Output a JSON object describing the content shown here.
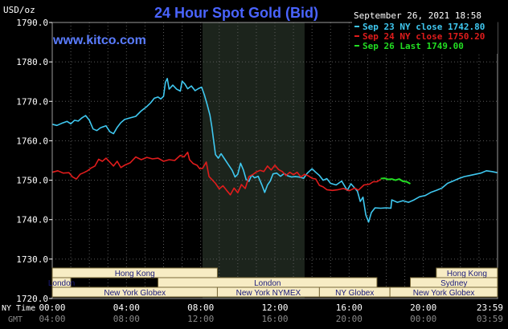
{
  "chart_data": {
    "type": "line",
    "title": "24 Hour Spot Gold (Bid)",
    "watermark": "www.kitco.com",
    "ylabel": "USD/oz",
    "timestamp": "September 26, 2021 18:58",
    "ylim": [
      1720,
      1790
    ],
    "y_ticks": [
      "1790.0",
      "1780.0",
      "1770.0",
      "1760.0",
      "1750.0",
      "1740.0",
      "1730.0",
      "1720.0"
    ],
    "x_ticks_ny": [
      "00:00",
      "04:00",
      "08:00",
      "12:00",
      "16:00",
      "20:00",
      "23:59"
    ],
    "x_ticks_gmt": [
      "04:00",
      "08:00",
      "12:00",
      "16:00",
      "20:00",
      "00:00",
      "03:59"
    ],
    "row_label_ny": "NY Time",
    "row_label_gmt": "GMT",
    "x_range_hours": [
      0,
      24
    ],
    "shaded_region_hours": [
      8.1,
      13.6
    ],
    "grid": true,
    "legend_position": "top-right",
    "legend": [
      {
        "text": "Sep 23 NY close 1742.80",
        "color": "#3fc8f0"
      },
      {
        "text": "Sep 24 NY close 1750.20",
        "color": "#e01c1c"
      },
      {
        "text": "Sep 26 Last 1749.00",
        "color": "#22dd22"
      }
    ],
    "series": [
      {
        "color": "#3fc8f0",
        "points": [
          [
            0,
            1764.2
          ],
          [
            0.25,
            1763.9
          ],
          [
            0.5,
            1764.4
          ],
          [
            0.8,
            1764.9
          ],
          [
            1.0,
            1764.3
          ],
          [
            1.2,
            1765.2
          ],
          [
            1.4,
            1765.0
          ],
          [
            1.6,
            1765.8
          ],
          [
            1.8,
            1766.4
          ],
          [
            2.0,
            1765.2
          ],
          [
            2.2,
            1763.0
          ],
          [
            2.4,
            1762.6
          ],
          [
            2.6,
            1763.3
          ],
          [
            2.9,
            1763.8
          ],
          [
            3.1,
            1762.3
          ],
          [
            3.3,
            1761.8
          ],
          [
            3.5,
            1763.4
          ],
          [
            3.7,
            1764.6
          ],
          [
            3.9,
            1765.4
          ],
          [
            4.2,
            1765.8
          ],
          [
            4.5,
            1766.2
          ],
          [
            4.8,
            1767.6
          ],
          [
            5.1,
            1768.7
          ],
          [
            5.3,
            1769.6
          ],
          [
            5.5,
            1770.8
          ],
          [
            5.7,
            1771.1
          ],
          [
            5.85,
            1770.6
          ],
          [
            6.0,
            1771.3
          ],
          [
            6.1,
            1774.8
          ],
          [
            6.2,
            1775.8
          ],
          [
            6.3,
            1773.1
          ],
          [
            6.5,
            1774.1
          ],
          [
            6.7,
            1773.1
          ],
          [
            6.9,
            1772.6
          ],
          [
            7.0,
            1775.1
          ],
          [
            7.15,
            1774.4
          ],
          [
            7.3,
            1773.2
          ],
          [
            7.5,
            1773.9
          ],
          [
            7.7,
            1772.7
          ],
          [
            7.9,
            1773.3
          ],
          [
            8.05,
            1773.6
          ],
          [
            8.2,
            1771.6
          ],
          [
            8.35,
            1769.2
          ],
          [
            8.5,
            1766.5
          ],
          [
            8.6,
            1763.6
          ],
          [
            8.7,
            1760.0
          ],
          [
            8.8,
            1756.5
          ],
          [
            8.95,
            1755.6
          ],
          [
            9.1,
            1756.7
          ],
          [
            9.3,
            1755.3
          ],
          [
            9.5,
            1753.9
          ],
          [
            9.7,
            1752.5
          ],
          [
            9.85,
            1750.8
          ],
          [
            10.0,
            1751.5
          ],
          [
            10.15,
            1754.3
          ],
          [
            10.3,
            1752.6
          ],
          [
            10.45,
            1750.2
          ],
          [
            10.6,
            1749.7
          ],
          [
            10.75,
            1751.3
          ],
          [
            10.9,
            1750.6
          ],
          [
            11.1,
            1751.0
          ],
          [
            11.3,
            1748.8
          ],
          [
            11.45,
            1746.9
          ],
          [
            11.6,
            1748.8
          ],
          [
            11.75,
            1749.8
          ],
          [
            11.9,
            1751.6
          ],
          [
            12.1,
            1751.8
          ],
          [
            12.3,
            1751.0
          ],
          [
            12.5,
            1751.7
          ],
          [
            12.7,
            1751.1
          ],
          [
            12.9,
            1750.8
          ],
          [
            13.1,
            1750.9
          ],
          [
            13.3,
            1750.8
          ],
          [
            13.55,
            1750.5
          ],
          [
            13.75,
            1751.8
          ],
          [
            14.0,
            1752.9
          ],
          [
            14.2,
            1752.0
          ],
          [
            14.4,
            1751.2
          ],
          [
            14.6,
            1750.0
          ],
          [
            14.8,
            1750.4
          ],
          [
            15.0,
            1749.2
          ],
          [
            15.3,
            1748.8
          ],
          [
            15.6,
            1749.8
          ],
          [
            15.9,
            1747.4
          ],
          [
            16.1,
            1749.1
          ],
          [
            16.3,
            1748.0
          ],
          [
            16.45,
            1747.2
          ],
          [
            16.6,
            1744.6
          ],
          [
            16.75,
            1745.7
          ],
          [
            16.9,
            1741.2
          ],
          [
            17.05,
            1739.4
          ],
          [
            17.2,
            1741.8
          ],
          [
            17.4,
            1743.0
          ],
          [
            17.7,
            1742.9
          ],
          [
            18.0,
            1743.0
          ],
          [
            18.25,
            1742.9
          ],
          [
            18.3,
            1745.0
          ],
          [
            18.6,
            1744.4
          ],
          [
            18.9,
            1744.8
          ],
          [
            19.2,
            1744.4
          ],
          [
            19.5,
            1745.0
          ],
          [
            19.8,
            1745.8
          ],
          [
            20.1,
            1746.1
          ],
          [
            20.4,
            1746.9
          ],
          [
            20.7,
            1747.4
          ],
          [
            21.0,
            1748.0
          ],
          [
            21.3,
            1749.2
          ],
          [
            21.6,
            1749.8
          ],
          [
            21.9,
            1750.4
          ],
          [
            22.2,
            1750.9
          ],
          [
            22.5,
            1751.2
          ],
          [
            22.8,
            1751.5
          ],
          [
            23.1,
            1751.8
          ],
          [
            23.4,
            1752.4
          ],
          [
            23.7,
            1752.2
          ],
          [
            23.99,
            1751.9
          ]
        ]
      },
      {
        "color": "#e01c1c",
        "points": [
          [
            0,
            1752.0
          ],
          [
            0.3,
            1752.4
          ],
          [
            0.6,
            1751.8
          ],
          [
            0.9,
            1751.9
          ],
          [
            1.1,
            1750.8
          ],
          [
            1.3,
            1750.3
          ],
          [
            1.5,
            1751.5
          ],
          [
            1.7,
            1751.9
          ],
          [
            1.9,
            1752.4
          ],
          [
            2.1,
            1753.1
          ],
          [
            2.3,
            1753.6
          ],
          [
            2.5,
            1755.3
          ],
          [
            2.7,
            1754.8
          ],
          [
            2.9,
            1755.6
          ],
          [
            3.1,
            1754.6
          ],
          [
            3.3,
            1753.6
          ],
          [
            3.5,
            1754.8
          ],
          [
            3.7,
            1753.2
          ],
          [
            3.9,
            1753.8
          ],
          [
            4.2,
            1754.4
          ],
          [
            4.5,
            1755.9
          ],
          [
            4.8,
            1755.2
          ],
          [
            5.1,
            1755.8
          ],
          [
            5.4,
            1755.4
          ],
          [
            5.7,
            1755.6
          ],
          [
            6.0,
            1754.8
          ],
          [
            6.3,
            1755.2
          ],
          [
            6.6,
            1755.0
          ],
          [
            6.9,
            1756.3
          ],
          [
            7.1,
            1755.9
          ],
          [
            7.3,
            1757.1
          ],
          [
            7.4,
            1755.2
          ],
          [
            7.6,
            1754.2
          ],
          [
            7.8,
            1753.8
          ],
          [
            7.95,
            1752.9
          ],
          [
            8.1,
            1753.0
          ],
          [
            8.3,
            1754.6
          ],
          [
            8.45,
            1750.9
          ],
          [
            8.6,
            1750.2
          ],
          [
            8.8,
            1749.2
          ],
          [
            9.0,
            1747.8
          ],
          [
            9.2,
            1748.6
          ],
          [
            9.4,
            1747.4
          ],
          [
            9.6,
            1746.3
          ],
          [
            9.8,
            1748.0
          ],
          [
            10.0,
            1746.8
          ],
          [
            10.2,
            1748.9
          ],
          [
            10.4,
            1747.9
          ],
          [
            10.6,
            1750.9
          ],
          [
            10.8,
            1751.4
          ],
          [
            11.0,
            1752.1
          ],
          [
            11.2,
            1752.5
          ],
          [
            11.4,
            1752.2
          ],
          [
            11.6,
            1753.6
          ],
          [
            11.8,
            1752.6
          ],
          [
            12.0,
            1753.8
          ],
          [
            12.2,
            1752.7
          ],
          [
            12.4,
            1752.2
          ],
          [
            12.6,
            1751.2
          ],
          [
            12.8,
            1752.0
          ],
          [
            13.0,
            1751.4
          ],
          [
            13.2,
            1752.0
          ],
          [
            13.4,
            1750.8
          ],
          [
            13.6,
            1751.5
          ],
          [
            13.8,
            1751.1
          ],
          [
            14.0,
            1750.5
          ],
          [
            14.2,
            1750.3
          ],
          [
            14.4,
            1748.7
          ],
          [
            14.6,
            1748.3
          ],
          [
            14.8,
            1747.6
          ],
          [
            15.1,
            1747.4
          ],
          [
            15.4,
            1747.6
          ],
          [
            15.7,
            1747.9
          ],
          [
            16.0,
            1747.3
          ],
          [
            16.3,
            1748.0
          ],
          [
            16.5,
            1747.5
          ],
          [
            16.8,
            1748.8
          ],
          [
            17.1,
            1749.0
          ],
          [
            17.3,
            1749.6
          ],
          [
            17.5,
            1749.6
          ],
          [
            17.7,
            1750.2
          ]
        ]
      },
      {
        "color": "#22dd22",
        "points": [
          [
            17.7,
            1750.4
          ],
          [
            17.9,
            1750.5
          ],
          [
            18.1,
            1750.2
          ],
          [
            18.3,
            1750.3
          ],
          [
            18.5,
            1750.0
          ],
          [
            18.7,
            1750.3
          ],
          [
            18.9,
            1749.7
          ],
          [
            19.1,
            1749.6
          ],
          [
            19.3,
            1749.1
          ]
        ]
      }
    ],
    "sessions": {
      "top_row": [
        {
          "label": "Hong Kong",
          "start": 0,
          "end": 8.9,
          "color": "#f7ecc4"
        },
        {
          "label": "Hong Kong",
          "start": 20.7,
          "end": 24,
          "color": "#f7ecc4"
        }
      ],
      "middle_row": [
        {
          "label": "London",
          "start": 0,
          "end": 1.0,
          "color": "#f7ecc4"
        },
        {
          "label": "London",
          "start": 5.7,
          "end": 17.5,
          "color": "#f7ecc4"
        },
        {
          "label": "Sydney",
          "start": 19.3,
          "end": 24,
          "color": "#f7ecc4"
        }
      ],
      "bottom_row": [
        {
          "label": "New York Globex",
          "start": 0,
          "end": 8.9,
          "color": "#f7ecc4"
        },
        {
          "label": "New York NYMEX",
          "start": 8.9,
          "end": 14.4,
          "color": "#f7ecc4"
        },
        {
          "label": "NY Globex",
          "start": 14.4,
          "end": 18.2,
          "color": "#f7ecc4"
        },
        {
          "label": "New York Globex",
          "start": 18.2,
          "end": 24,
          "color": "#f7ecc4"
        }
      ]
    }
  }
}
